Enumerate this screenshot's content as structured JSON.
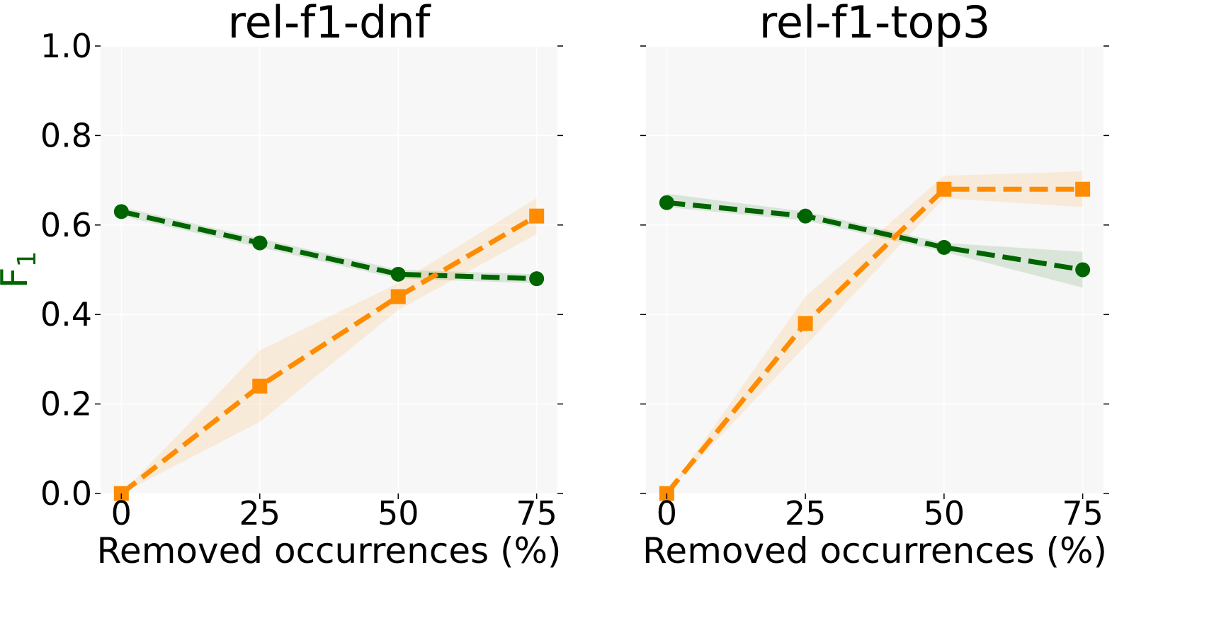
{
  "chart_data": [
    {
      "type": "line",
      "title": "rel-f1-dnf",
      "xlabel": "Removed occurrences (%)",
      "ylabel": "F",
      "ylabel_subscript": "1",
      "ylabel_color": "#006400",
      "x": [
        0,
        25,
        50,
        75
      ],
      "x_tick_labels": [
        "0",
        "25",
        "50",
        "75"
      ],
      "y_tick_labels": [
        "0.0",
        "0.2",
        "0.4",
        "0.6",
        "0.8",
        "1.0"
      ],
      "xlim": [
        -3.75,
        78.75
      ],
      "ylim": [
        0,
        1
      ],
      "grid": true,
      "background": "#f7f7f7",
      "series": [
        {
          "color": "#006400",
          "marker": "circle",
          "linestyle": "dashed",
          "values": [
            0.63,
            0.56,
            0.49,
            0.48
          ],
          "band_low": [
            0.62,
            0.55,
            0.48,
            0.47
          ],
          "band_high": [
            0.64,
            0.57,
            0.5,
            0.49
          ]
        },
        {
          "color": "#ff8c00",
          "marker": "square",
          "linestyle": "dashed",
          "values": [
            0.0,
            0.24,
            0.44,
            0.62
          ],
          "band_low": [
            0.0,
            0.16,
            0.41,
            0.58
          ],
          "band_high": [
            0.0,
            0.32,
            0.47,
            0.66
          ]
        }
      ]
    },
    {
      "type": "line",
      "title": "rel-f1-top3",
      "xlabel": "Removed occurrences (%)",
      "x": [
        0,
        25,
        50,
        75
      ],
      "x_tick_labels": [
        "0",
        "25",
        "50",
        "75"
      ],
      "xlim": [
        -3.75,
        78.75
      ],
      "ylim": [
        0,
        1
      ],
      "grid": true,
      "background": "#f7f7f7",
      "series": [
        {
          "color": "#006400",
          "marker": "circle",
          "linestyle": "dashed",
          "values": [
            0.65,
            0.62,
            0.55,
            0.5
          ],
          "band_low": [
            0.64,
            0.61,
            0.54,
            0.46
          ],
          "band_high": [
            0.67,
            0.63,
            0.56,
            0.54
          ]
        },
        {
          "color": "#ff8c00",
          "marker": "square",
          "linestyle": "dashed",
          "values": [
            0.0,
            0.38,
            0.68,
            0.68
          ],
          "band_low": [
            0.0,
            0.33,
            0.66,
            0.64
          ],
          "band_high": [
            0.0,
            0.44,
            0.71,
            0.72
          ]
        }
      ]
    }
  ]
}
